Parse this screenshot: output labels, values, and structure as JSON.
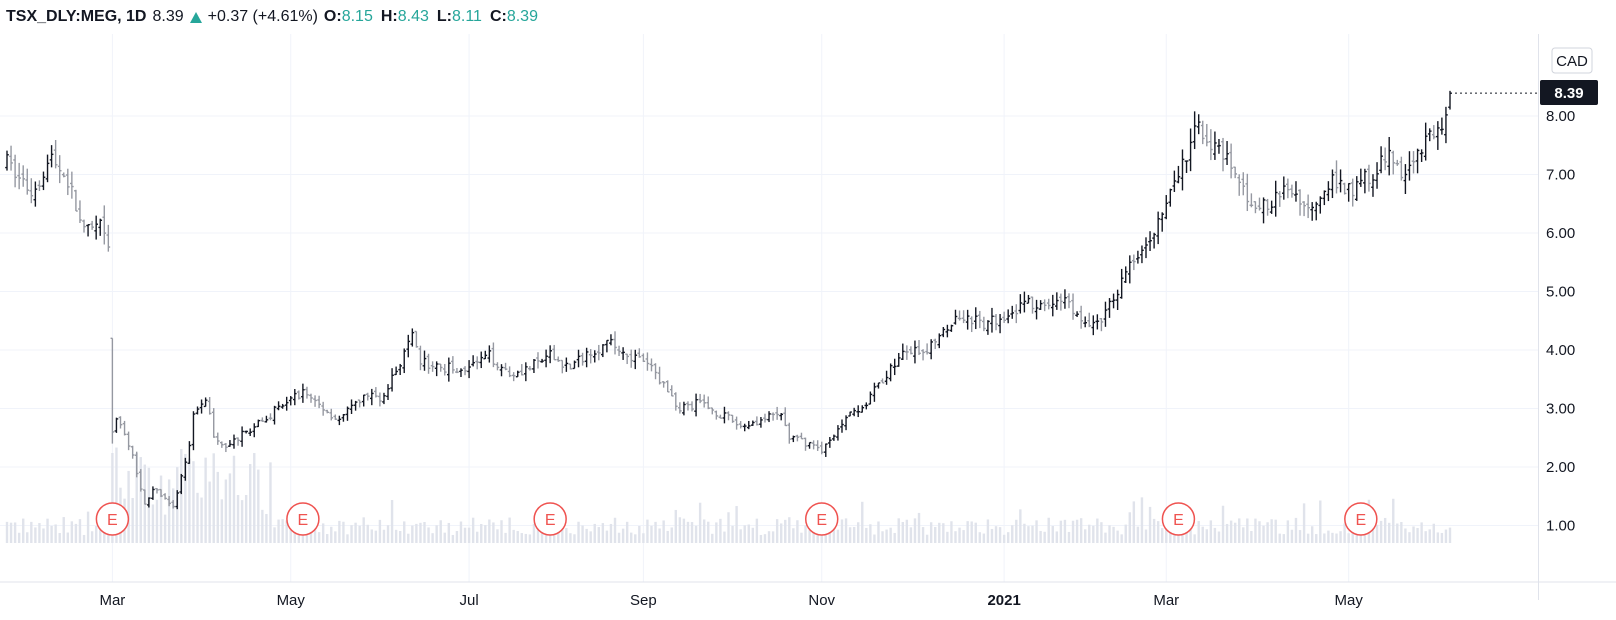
{
  "header": {
    "symbol": "TSX_DLY:MEG, 1D",
    "last": "8.39",
    "change": "+0.37 (+4.61%)",
    "open_label": "O:",
    "open": "8.15",
    "high_label": "H:",
    "high": "8.43",
    "low_label": "L:",
    "low": "8.11",
    "close_label": "C:",
    "close": "8.39"
  },
  "currency": "CAD",
  "price_tag": "8.39",
  "earnings_marker": "E",
  "colors": {
    "up": "#26a69a",
    "bar_dark": "#131722",
    "bar_light": "#9598a1",
    "volume": "#e0e3eb",
    "grid": "#f0f3fa",
    "earnings": "#ef5350",
    "tag": "#131722"
  },
  "chart_data": {
    "type": "ohlc",
    "interval": "1D",
    "x_tick_labels": [
      "Mar",
      "May",
      "Jul",
      "Sep",
      "Nov",
      "2021",
      "Mar",
      "May"
    ],
    "y_tick_labels": [
      "1.00",
      "2.00",
      "3.00",
      "4.00",
      "5.00",
      "6.00",
      "7.00",
      "8.00"
    ],
    "ylim": [
      0.4,
      9.7
    ],
    "grid": true,
    "path_points": [
      [
        "2020-01-24",
        7.2
      ],
      [
        "2020-02-03",
        6.7
      ],
      [
        "2020-02-10",
        7.3
      ],
      [
        "2020-02-14",
        6.9
      ],
      [
        "2020-02-20",
        6.0
      ],
      [
        "2020-02-26",
        6.1
      ],
      [
        "2020-02-28",
        5.7
      ],
      [
        "2020-03-02",
        3.0
      ],
      [
        "2020-03-05",
        2.5
      ],
      [
        "2020-03-09",
        2.2
      ],
      [
        "2020-03-12",
        1.4
      ],
      [
        "2020-03-16",
        1.6
      ],
      [
        "2020-03-19",
        1.5
      ],
      [
        "2020-03-23",
        1.3
      ],
      [
        "2020-03-25",
        1.8
      ],
      [
        "2020-03-27",
        2.4
      ],
      [
        "2020-03-30",
        2.9
      ],
      [
        "2020-04-02",
        3.2
      ],
      [
        "2020-04-06",
        2.5
      ],
      [
        "2020-04-09",
        2.3
      ],
      [
        "2020-04-14",
        2.5
      ],
      [
        "2020-04-20",
        2.7
      ],
      [
        "2020-04-28",
        3.0
      ],
      [
        "2020-05-06",
        3.3
      ],
      [
        "2020-05-13",
        3.0
      ],
      [
        "2020-05-19",
        2.8
      ],
      [
        "2020-05-27",
        3.2
      ],
      [
        "2020-06-03",
        3.2
      ],
      [
        "2020-06-09",
        3.8
      ],
      [
        "2020-06-12",
        4.2
      ],
      [
        "2020-06-16",
        3.8
      ],
      [
        "2020-06-22",
        3.7
      ],
      [
        "2020-07-02",
        3.7
      ],
      [
        "2020-07-09",
        3.9
      ],
      [
        "2020-07-16",
        3.6
      ],
      [
        "2020-07-23",
        3.7
      ],
      [
        "2020-07-30",
        3.9
      ],
      [
        "2020-08-06",
        3.7
      ],
      [
        "2020-08-13",
        4.0
      ],
      [
        "2020-08-20",
        4.1
      ],
      [
        "2020-08-27",
        3.9
      ],
      [
        "2020-09-03",
        3.7
      ],
      [
        "2020-09-09",
        3.3
      ],
      [
        "2020-09-14",
        3.0
      ],
      [
        "2020-09-21",
        3.1
      ],
      [
        "2020-09-28",
        2.9
      ],
      [
        "2020-10-05",
        2.7
      ],
      [
        "2020-10-12",
        2.8
      ],
      [
        "2020-10-19",
        2.9
      ],
      [
        "2020-10-21",
        2.5
      ],
      [
        "2020-10-28",
        2.4
      ],
      [
        "2020-11-02",
        2.3
      ],
      [
        "2020-11-05",
        2.5
      ],
      [
        "2020-11-10",
        2.9
      ],
      [
        "2020-11-17",
        3.1
      ],
      [
        "2020-11-24",
        3.6
      ],
      [
        "2020-12-01",
        4.0
      ],
      [
        "2020-12-07",
        3.9
      ],
      [
        "2020-12-14",
        4.4
      ],
      [
        "2020-12-21",
        4.6
      ],
      [
        "2020-12-28",
        4.4
      ],
      [
        "2021-01-04",
        4.6
      ],
      [
        "2021-01-11",
        4.8
      ],
      [
        "2021-01-18",
        4.7
      ],
      [
        "2021-01-25",
        4.9
      ],
      [
        "2021-02-01",
        4.4
      ],
      [
        "2021-02-08",
        4.6
      ],
      [
        "2021-02-12",
        5.2
      ],
      [
        "2021-02-18",
        5.7
      ],
      [
        "2021-02-25",
        6.2
      ],
      [
        "2021-03-01",
        6.5
      ],
      [
        "2021-03-04",
        7.0
      ],
      [
        "2021-03-08",
        7.3
      ],
      [
        "2021-03-11",
        7.9
      ],
      [
        "2021-03-16",
        7.5
      ],
      [
        "2021-03-22",
        7.2
      ],
      [
        "2021-03-29",
        6.6
      ],
      [
        "2021-04-05",
        6.4
      ],
      [
        "2021-04-12",
        6.8
      ],
      [
        "2021-04-19",
        6.4
      ],
      [
        "2021-04-26",
        6.9
      ],
      [
        "2021-05-03",
        6.7
      ],
      [
        "2021-05-10",
        7.0
      ],
      [
        "2021-05-17",
        7.3
      ],
      [
        "2021-05-21",
        7.0
      ],
      [
        "2021-05-26",
        7.5
      ],
      [
        "2021-06-01",
        7.6
      ],
      [
        "2021-06-04",
        8.1
      ],
      [
        "2021-06-07",
        8.39
      ]
    ],
    "last_bar": {
      "date": "2021-06-07",
      "open": 8.15,
      "high": 8.43,
      "low": 8.11,
      "close": 8.39
    },
    "earnings_dates": [
      "2020-03-02",
      "2020-05-06",
      "2020-07-30",
      "2020-11-02",
      "2021-03-04",
      "2021-05-06"
    ]
  }
}
